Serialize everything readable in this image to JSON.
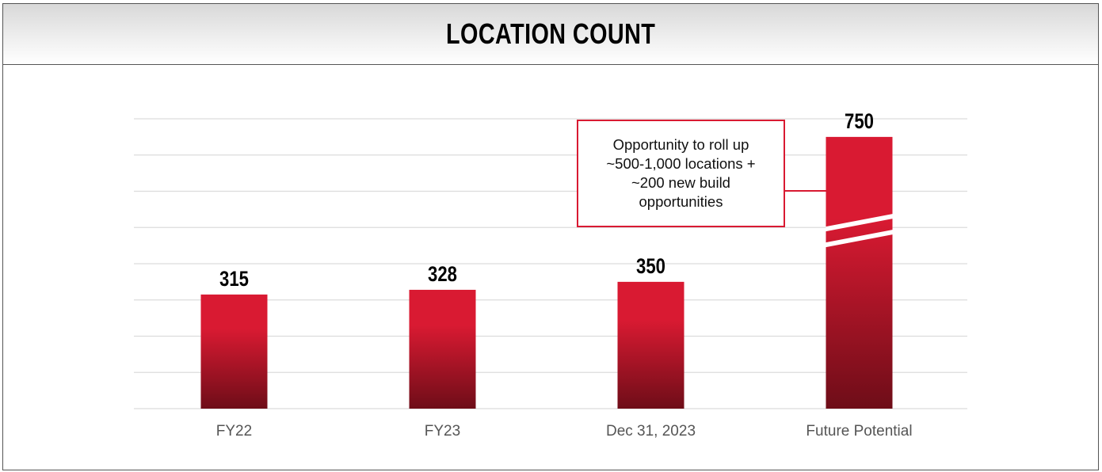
{
  "header": {
    "title": "LOCATION COUNT"
  },
  "chart_data": {
    "type": "bar",
    "title": "LOCATION COUNT",
    "categories": [
      "FY22",
      "FY23",
      "Dec 31, 2023",
      "Future Potential"
    ],
    "values": [
      315,
      328,
      350,
      750
    ],
    "data_labels": [
      "315",
      "328",
      "350",
      "750"
    ],
    "xlabel": "",
    "ylabel": "",
    "ylim": [
      0,
      800
    ],
    "grid": true,
    "gridline_step": 100,
    "y_tick_labels_shown": false,
    "axis_break_on": "Future Potential",
    "bar_color_top": "#d91a32",
    "bar_color_bottom": "#6e0d18",
    "annotation": {
      "target": "Future Potential",
      "lines": [
        "Opportunity to roll up",
        "~500-1,000 locations +",
        "~200 new build",
        "opportunities"
      ],
      "border_color": "#d91a32"
    }
  }
}
